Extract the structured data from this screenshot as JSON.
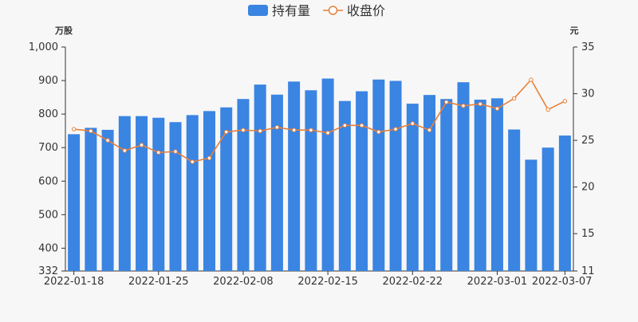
{
  "chart_data": {
    "type": "bar",
    "legend": {
      "position": "top-center",
      "items": [
        {
          "name": "持有量",
          "kind": "bar"
        },
        {
          "name": "收盘价",
          "kind": "line"
        }
      ]
    },
    "left_axis": {
      "unit": "万股",
      "ticks": [
        "332",
        "400",
        "500",
        "600",
        "700",
        "800",
        "900",
        "1,000"
      ],
      "tick_values": [
        332,
        400,
        500,
        600,
        700,
        800,
        900,
        1000
      ],
      "range": [
        332,
        1000
      ]
    },
    "right_axis": {
      "unit": "元",
      "ticks": [
        "11",
        "15",
        "20",
        "25",
        "30",
        "35"
      ],
      "tick_values": [
        11,
        15,
        20,
        25,
        30,
        35
      ],
      "range": [
        11,
        35
      ]
    },
    "x_tick_labels": [
      {
        "label": "2022-01-18",
        "index": 0
      },
      {
        "label": "2022-01-25",
        "index": 5
      },
      {
        "label": "2022-02-08",
        "index": 10
      },
      {
        "label": "2022-02-15",
        "index": 15
      },
      {
        "label": "2022-02-22",
        "index": 20
      },
      {
        "label": "2022-03-01",
        "index": 25
      },
      {
        "label": "2022-03-07",
        "index": 29
      }
    ],
    "series": [
      {
        "name": "持有量",
        "type": "bar",
        "axis": "left",
        "color": "#3a84e2",
        "values": [
          740,
          759,
          753,
          794,
          794,
          789,
          776,
          797,
          809,
          820,
          845,
          888,
          858,
          897,
          871,
          906,
          839,
          868,
          903,
          899,
          831,
          857,
          845,
          895,
          843,
          847,
          754,
          664,
          700,
          736
        ]
      },
      {
        "name": "收盘价",
        "type": "line",
        "axis": "right",
        "color": "#e8803a",
        "values": [
          26.2,
          26.0,
          25.0,
          23.9,
          24.5,
          23.7,
          23.8,
          22.7,
          23.1,
          25.9,
          26.1,
          26.0,
          26.4,
          26.1,
          26.1,
          25.8,
          26.6,
          26.6,
          25.9,
          26.2,
          26.8,
          26.1,
          29.1,
          28.7,
          28.9,
          28.4,
          29.5,
          31.5,
          28.3,
          29.2
        ]
      }
    ]
  }
}
